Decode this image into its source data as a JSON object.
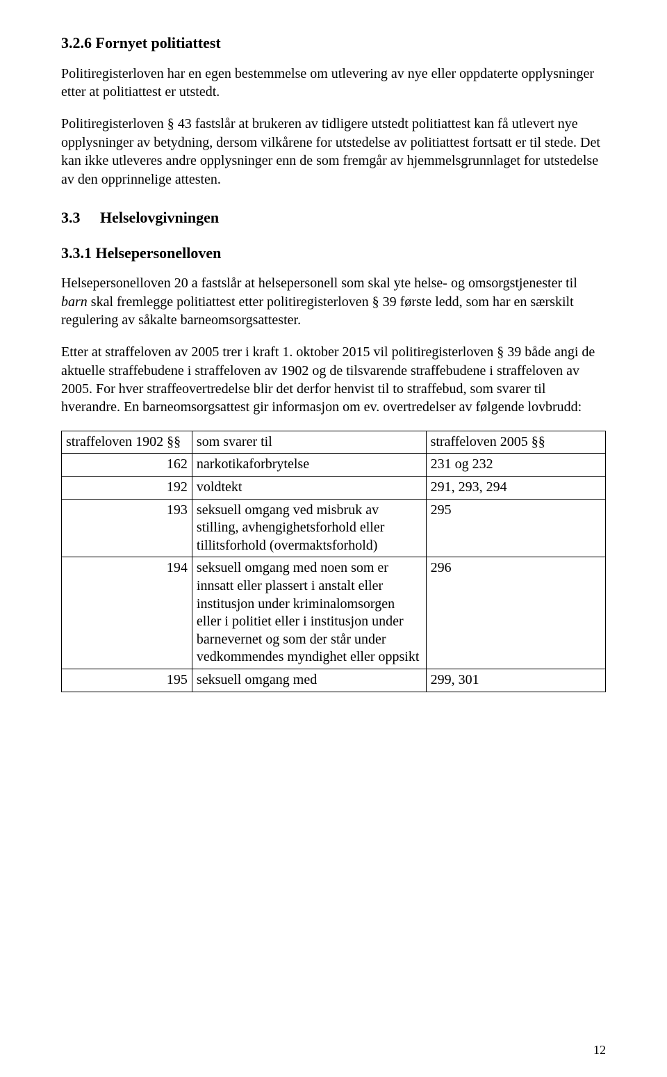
{
  "section326": {
    "heading": "3.2.6 Fornyet politiattest",
    "p1": "Politiregisterloven har en egen bestemmelse om utlevering av nye eller oppdaterte opplysninger etter at politiattest er utstedt.",
    "p2": "Politiregisterloven § 43 fastslår at brukeren av tidligere utstedt politiattest kan få utlevert nye opplysninger av betydning, dersom vilkårene for utstedelse av politiattest fortsatt er til stede. Det kan ikke utleveres andre opplysninger enn de som fremgår av hjemmelsgrunnlaget for utstedelse av den opprinnelige attesten."
  },
  "section33": {
    "num": "3.3",
    "title": "Helselovgivningen"
  },
  "section331": {
    "heading": "3.3.1 Helsepersonelloven",
    "p1a": "Helsepersonelloven 20 a fastslår at helsepersonell som skal yte helse- og omsorgstjenester til ",
    "p1_italic": "barn",
    "p1b": " skal fremlegge politiattest etter politiregisterloven § 39 første ledd, som har en særskilt regulering av såkalte barneomsorgsattester.",
    "p2": "Etter at straffeloven av 2005 trer i kraft 1. oktober 2015 vil politiregisterloven § 39 både angi de aktuelle straffebudene i straffeloven av 1902 og de tilsvarende straffebudene i straffeloven av 2005. For hver straffeovertredelse blir det derfor henvist til to straffebud, som svarer til hverandre. En barneomsorgsattest gir informasjon om ev. overtredelser av følgende lovbrudd:"
  },
  "table": {
    "headers": {
      "c1": "straffeloven 1902 §§",
      "c2": "som svarer til",
      "c3": "straffeloven 2005 §§"
    },
    "rows": [
      {
        "c1": "162",
        "c2": "narkotikaforbrytelse",
        "c3": "231 og 232"
      },
      {
        "c1": "192",
        "c2": "voldtekt",
        "c3": "291, 293, 294"
      },
      {
        "c1": "193",
        "c2": "seksuell omgang ved misbruk av stilling, avhengighetsforhold eller tillitsforhold (overmaktsforhold)",
        "c3": "295"
      },
      {
        "c1": "194",
        "c2": "seksuell omgang med noen som er innsatt eller plassert i anstalt eller institusjon under kriminalomsorgen eller i politiet eller i institusjon under barnevernet og som der står under vedkommendes myndighet eller oppsikt",
        "c3": "296"
      },
      {
        "c1": "195",
        "c2": "seksuell omgang med",
        "c3": "299, 301"
      }
    ]
  },
  "pageNumber": "12"
}
